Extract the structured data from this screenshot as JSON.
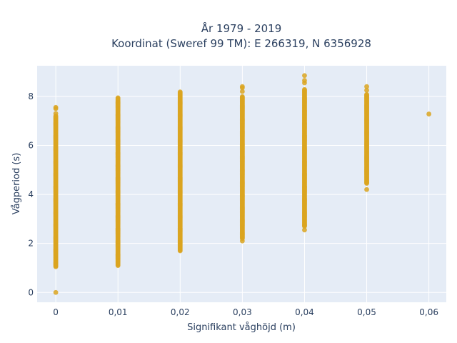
{
  "chart_data": {
    "type": "scatter",
    "title_line1": "År 1979 - 2019",
    "title_line2": "Koordinat (Sweref 99 TM): E 266319, N 6356928",
    "xlabel": "Signifikant våghöjd (m)",
    "ylabel": "Vågperiod (s)",
    "xlim": [
      -0.003,
      0.0628
    ],
    "ylim": [
      -0.4,
      9.25
    ],
    "x_ticks": [
      0,
      0.01,
      0.02,
      0.03,
      0.04,
      0.05,
      0.06
    ],
    "x_tick_labels": [
      "0",
      "0,01",
      "0,02",
      "0,03",
      "0,04",
      "0,05",
      "0,06"
    ],
    "y_ticks": [
      0,
      2,
      4,
      6,
      8
    ],
    "y_tick_labels": [
      "0",
      "2",
      "4",
      "6",
      "8"
    ],
    "grid": true,
    "point_color": "#DAA520",
    "background_color": "#E5ECF6",
    "columns": [
      {
        "x": 0,
        "y_min": 1.05,
        "y_max": 7.2,
        "outliers": [
          7.3,
          7.5,
          7.55,
          0.0
        ]
      },
      {
        "x": 0.01,
        "y_min": 1.1,
        "y_max": 7.95,
        "outliers": []
      },
      {
        "x": 0.02,
        "y_min": 1.7,
        "y_max": 8.2,
        "outliers": []
      },
      {
        "x": 0.03,
        "y_min": 2.2,
        "y_max": 8.0,
        "outliers": [
          2.1,
          8.2,
          8.35,
          8.4
        ]
      },
      {
        "x": 0.04,
        "y_min": 2.7,
        "y_max": 8.3,
        "outliers": [
          2.55,
          8.55,
          8.65,
          8.85
        ]
      },
      {
        "x": 0.05,
        "y_min": 4.45,
        "y_max": 8.1,
        "outliers": [
          4.2,
          8.25,
          8.4
        ]
      },
      {
        "x": 0.06,
        "y_min": 7.28,
        "y_max": 7.28,
        "outliers": []
      }
    ]
  }
}
